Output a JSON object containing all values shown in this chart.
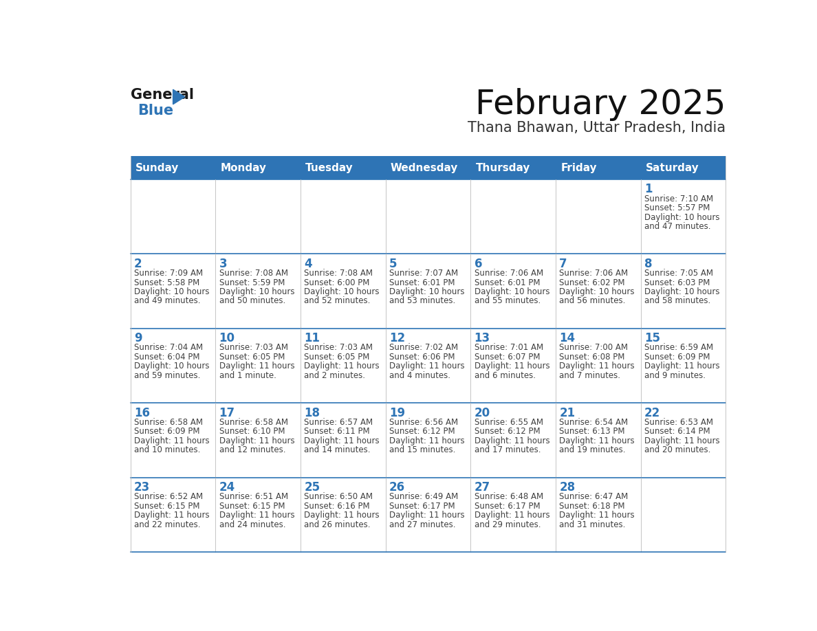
{
  "title": "February 2025",
  "subtitle": "Thana Bhawan, Uttar Pradesh, India",
  "header_color": "#2E74B5",
  "header_text_color": "#FFFFFF",
  "border_color": "#2E74B5",
  "grid_line_color": "#2E74B5",
  "text_color": "#404040",
  "day_num_color": "#2E74B5",
  "days_of_week": [
    "Sunday",
    "Monday",
    "Tuesday",
    "Wednesday",
    "Thursday",
    "Friday",
    "Saturday"
  ],
  "logo_general_color": "#1a1a1a",
  "logo_blue_color": "#2E74B5",
  "title_fontsize": 36,
  "subtitle_fontsize": 15,
  "header_fontsize": 11,
  "day_num_fontsize": 12,
  "cell_text_fontsize": 8.5,
  "calendar_data": [
    [
      {
        "day": "",
        "sunrise": "",
        "sunset": "",
        "daylight": ""
      },
      {
        "day": "",
        "sunrise": "",
        "sunset": "",
        "daylight": ""
      },
      {
        "day": "",
        "sunrise": "",
        "sunset": "",
        "daylight": ""
      },
      {
        "day": "",
        "sunrise": "",
        "sunset": "",
        "daylight": ""
      },
      {
        "day": "",
        "sunrise": "",
        "sunset": "",
        "daylight": ""
      },
      {
        "day": "",
        "sunrise": "",
        "sunset": "",
        "daylight": ""
      },
      {
        "day": "1",
        "sunrise": "7:10 AM",
        "sunset": "5:57 PM",
        "daylight1": "10 hours",
        "daylight2": "and 47 minutes."
      }
    ],
    [
      {
        "day": "2",
        "sunrise": "7:09 AM",
        "sunset": "5:58 PM",
        "daylight1": "10 hours",
        "daylight2": "and 49 minutes."
      },
      {
        "day": "3",
        "sunrise": "7:08 AM",
        "sunset": "5:59 PM",
        "daylight1": "10 hours",
        "daylight2": "and 50 minutes."
      },
      {
        "day": "4",
        "sunrise": "7:08 AM",
        "sunset": "6:00 PM",
        "daylight1": "10 hours",
        "daylight2": "and 52 minutes."
      },
      {
        "day": "5",
        "sunrise": "7:07 AM",
        "sunset": "6:01 PM",
        "daylight1": "10 hours",
        "daylight2": "and 53 minutes."
      },
      {
        "day": "6",
        "sunrise": "7:06 AM",
        "sunset": "6:01 PM",
        "daylight1": "10 hours",
        "daylight2": "and 55 minutes."
      },
      {
        "day": "7",
        "sunrise": "7:06 AM",
        "sunset": "6:02 PM",
        "daylight1": "10 hours",
        "daylight2": "and 56 minutes."
      },
      {
        "day": "8",
        "sunrise": "7:05 AM",
        "sunset": "6:03 PM",
        "daylight1": "10 hours",
        "daylight2": "and 58 minutes."
      }
    ],
    [
      {
        "day": "9",
        "sunrise": "7:04 AM",
        "sunset": "6:04 PM",
        "daylight1": "10 hours",
        "daylight2": "and 59 minutes."
      },
      {
        "day": "10",
        "sunrise": "7:03 AM",
        "sunset": "6:05 PM",
        "daylight1": "11 hours",
        "daylight2": "and 1 minute."
      },
      {
        "day": "11",
        "sunrise": "7:03 AM",
        "sunset": "6:05 PM",
        "daylight1": "11 hours",
        "daylight2": "and 2 minutes."
      },
      {
        "day": "12",
        "sunrise": "7:02 AM",
        "sunset": "6:06 PM",
        "daylight1": "11 hours",
        "daylight2": "and 4 minutes."
      },
      {
        "day": "13",
        "sunrise": "7:01 AM",
        "sunset": "6:07 PM",
        "daylight1": "11 hours",
        "daylight2": "and 6 minutes."
      },
      {
        "day": "14",
        "sunrise": "7:00 AM",
        "sunset": "6:08 PM",
        "daylight1": "11 hours",
        "daylight2": "and 7 minutes."
      },
      {
        "day": "15",
        "sunrise": "6:59 AM",
        "sunset": "6:09 PM",
        "daylight1": "11 hours",
        "daylight2": "and 9 minutes."
      }
    ],
    [
      {
        "day": "16",
        "sunrise": "6:58 AM",
        "sunset": "6:09 PM",
        "daylight1": "11 hours",
        "daylight2": "and 10 minutes."
      },
      {
        "day": "17",
        "sunrise": "6:58 AM",
        "sunset": "6:10 PM",
        "daylight1": "11 hours",
        "daylight2": "and 12 minutes."
      },
      {
        "day": "18",
        "sunrise": "6:57 AM",
        "sunset": "6:11 PM",
        "daylight1": "11 hours",
        "daylight2": "and 14 minutes."
      },
      {
        "day": "19",
        "sunrise": "6:56 AM",
        "sunset": "6:12 PM",
        "daylight1": "11 hours",
        "daylight2": "and 15 minutes."
      },
      {
        "day": "20",
        "sunrise": "6:55 AM",
        "sunset": "6:12 PM",
        "daylight1": "11 hours",
        "daylight2": "and 17 minutes."
      },
      {
        "day": "21",
        "sunrise": "6:54 AM",
        "sunset": "6:13 PM",
        "daylight1": "11 hours",
        "daylight2": "and 19 minutes."
      },
      {
        "day": "22",
        "sunrise": "6:53 AM",
        "sunset": "6:14 PM",
        "daylight1": "11 hours",
        "daylight2": "and 20 minutes."
      }
    ],
    [
      {
        "day": "23",
        "sunrise": "6:52 AM",
        "sunset": "6:15 PM",
        "daylight1": "11 hours",
        "daylight2": "and 22 minutes."
      },
      {
        "day": "24",
        "sunrise": "6:51 AM",
        "sunset": "6:15 PM",
        "daylight1": "11 hours",
        "daylight2": "and 24 minutes."
      },
      {
        "day": "25",
        "sunrise": "6:50 AM",
        "sunset": "6:16 PM",
        "daylight1": "11 hours",
        "daylight2": "and 26 minutes."
      },
      {
        "day": "26",
        "sunrise": "6:49 AM",
        "sunset": "6:17 PM",
        "daylight1": "11 hours",
        "daylight2": "and 27 minutes."
      },
      {
        "day": "27",
        "sunrise": "6:48 AM",
        "sunset": "6:17 PM",
        "daylight1": "11 hours",
        "daylight2": "and 29 minutes."
      },
      {
        "day": "28",
        "sunrise": "6:47 AM",
        "sunset": "6:18 PM",
        "daylight1": "11 hours",
        "daylight2": "and 31 minutes."
      },
      {
        "day": "",
        "sunrise": "",
        "sunset": "",
        "daylight1": "",
        "daylight2": ""
      }
    ]
  ]
}
